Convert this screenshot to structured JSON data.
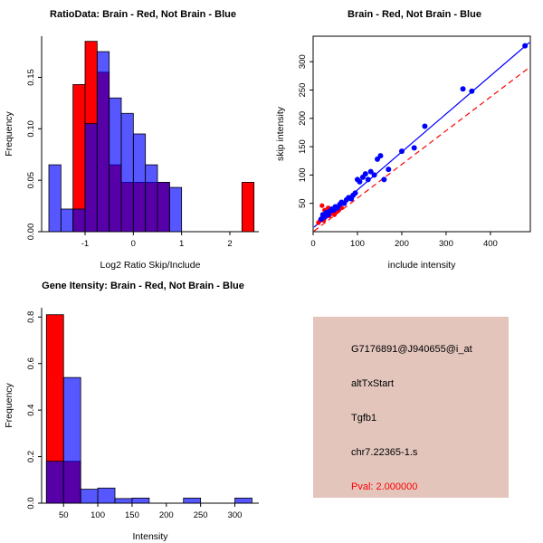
{
  "page": {
    "background": "#FFFFFF"
  },
  "colors": {
    "brain_red": "#FF0000",
    "not_brain_blue": "#0000FF",
    "overlap_purple": "#7A1FB0",
    "info_bg": "#E3C5BC",
    "pval_red": "#FF0000",
    "axis": "#000000"
  },
  "chart_data": [
    {
      "id": "ratio-hist",
      "type": "bar",
      "title": "RatioData: Brain - Red, Not Brain - Blue",
      "xlabel": "Log2 Ratio Skip/Include",
      "ylabel": "Frequency",
      "xlim": [
        -1.9,
        2.6
      ],
      "ylim": [
        0,
        0.19
      ],
      "xticks": [
        -1,
        0,
        1,
        2
      ],
      "yticks": [
        0,
        0.05,
        0.1,
        0.15
      ],
      "ytick_labels": [
        "0.00",
        "0.05",
        "0.10",
        "0.15"
      ],
      "bin_start": -1.75,
      "bin_width": 0.25,
      "grid": false,
      "box": false,
      "series": [
        {
          "name": "Brain",
          "color": "#FF0000",
          "values": [
            0,
            0,
            0.143,
            0.185,
            0.155,
            0.065,
            0.048,
            0.048,
            0.048,
            0.048,
            0,
            0,
            0,
            0,
            0,
            0,
            0.048
          ]
        },
        {
          "name": "Not Brain",
          "color": "#0000FF",
          "values": [
            0.065,
            0.022,
            0.022,
            0.105,
            0.175,
            0.13,
            0.115,
            0.095,
            0.065,
            0.048,
            0.043,
            0,
            0,
            0,
            0,
            0,
            0
          ]
        }
      ]
    },
    {
      "id": "scatter",
      "type": "scatter",
      "title": "Brain - Red, Not Brain - Blue",
      "xlabel": "include intensity",
      "ylabel": "skip intensity",
      "xlim": [
        0,
        490
      ],
      "ylim": [
        0,
        345
      ],
      "xticks": [
        0,
        100,
        200,
        300,
        400
      ],
      "yticks": [
        50,
        100,
        150,
        200,
        250,
        300
      ],
      "grid": false,
      "box": true,
      "lines": [
        {
          "name": "not-brain-fit",
          "color": "#0000FF",
          "dash": null,
          "from": [
            2,
            8
          ],
          "to": [
            488,
            334
          ]
        },
        {
          "name": "brain-fit",
          "color": "#FF0000",
          "dash": "6,4",
          "from": [
            2,
            1
          ],
          "to": [
            488,
            290
          ]
        }
      ],
      "series": [
        {
          "name": "Brain",
          "color": "#FF0000",
          "r": 2.6,
          "points": [
            [
              12,
              16
            ],
            [
              16,
              20
            ],
            [
              20,
              24
            ],
            [
              24,
              20
            ],
            [
              28,
              26
            ],
            [
              32,
              30
            ],
            [
              36,
              28
            ],
            [
              40,
              32
            ],
            [
              44,
              34
            ],
            [
              48,
              30
            ],
            [
              52,
              36
            ],
            [
              26,
              38
            ],
            [
              34,
              42
            ],
            [
              20,
              46
            ],
            [
              58,
              38
            ],
            [
              64,
              42
            ]
          ]
        },
        {
          "name": "Not Brain",
          "color": "#0000FF",
          "r": 3,
          "points": [
            [
              18,
              22
            ],
            [
              22,
              30
            ],
            [
              26,
              26
            ],
            [
              30,
              34
            ],
            [
              34,
              30
            ],
            [
              38,
              36
            ],
            [
              42,
              40
            ],
            [
              46,
              38
            ],
            [
              50,
              44
            ],
            [
              55,
              42
            ],
            [
              60,
              48
            ],
            [
              64,
              52
            ],
            [
              70,
              50
            ],
            [
              75,
              56
            ],
            [
              80,
              60
            ],
            [
              86,
              58
            ],
            [
              90,
              64
            ],
            [
              95,
              68
            ],
            [
              100,
              92
            ],
            [
              105,
              88
            ],
            [
              112,
              96
            ],
            [
              118,
              102
            ],
            [
              124,
              92
            ],
            [
              130,
              106
            ],
            [
              138,
              100
            ],
            [
              145,
              128
            ],
            [
              152,
              134
            ],
            [
              160,
              92
            ],
            [
              170,
              110
            ],
            [
              200,
              142
            ],
            [
              228,
              148
            ],
            [
              252,
              186
            ],
            [
              338,
              252
            ],
            [
              358,
              248
            ],
            [
              478,
              328
            ]
          ]
        }
      ]
    },
    {
      "id": "gene-hist",
      "type": "bar",
      "title": "Gene Itensity: Brain - Red, Not Brain - Blue",
      "xlabel": "Intensity",
      "ylabel": "Frequency",
      "xlim": [
        18,
        335
      ],
      "ylim": [
        0,
        0.84
      ],
      "xticks": [
        50,
        100,
        150,
        200,
        250,
        300
      ],
      "yticks": [
        0,
        0.2,
        0.4,
        0.6,
        0.8
      ],
      "ytick_labels": [
        "0.0",
        "0.2",
        "0.4",
        "0.6",
        "0.8"
      ],
      "bin_start": 25,
      "bin_width": 25,
      "grid": false,
      "box": false,
      "series": [
        {
          "name": "Brain",
          "color": "#FF0000",
          "values": [
            0.81,
            0.18,
            0,
            0,
            0,
            0,
            0,
            0,
            0,
            0,
            0,
            0
          ]
        },
        {
          "name": "Not Brain",
          "color": "#0000FF",
          "values": [
            0.18,
            0.54,
            0.06,
            0.065,
            0.02,
            0.022,
            0,
            0,
            0.022,
            0,
            0,
            0.022
          ]
        }
      ]
    }
  ],
  "info_panel": {
    "bg": "#E3C5BC",
    "lines": [
      {
        "text": "G7176891@J940655@i_at",
        "color": "#000000"
      },
      {
        "text": "altTxStart",
        "color": "#000000"
      },
      {
        "text": "Tgfb1",
        "color": "#000000"
      },
      {
        "text": "chr7.22365-1.s",
        "color": "#000000"
      },
      {
        "text": "Pval: 2.000000",
        "color": "#FF0000"
      }
    ]
  }
}
